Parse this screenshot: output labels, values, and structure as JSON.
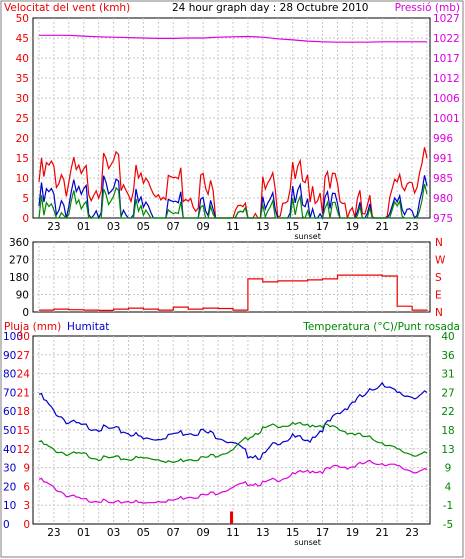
{
  "title": "24 hour graph day : 28 Octubre 2010",
  "colors": {
    "red": "#ee0000",
    "blue": "#0000cc",
    "green": "#008800",
    "magenta": "#dd00dd",
    "grid": "#c8c8c8",
    "axis": "#000000"
  },
  "chart_data": [
    {
      "type": "line",
      "panel": "wind-pressure",
      "title": "24 hour graph day : 28 Octubre 2010",
      "left_label": "Velocitat del vent (kmh)",
      "right_label": "Pressió (mb)",
      "x_ticks": [
        "23",
        "01",
        "03",
        "05",
        "07",
        "09",
        "11",
        "13",
        "15",
        "17",
        "19",
        "21",
        "23"
      ],
      "x_annotation": "sunset",
      "left_ticks": [
        "0",
        "5",
        "10",
        "15",
        "20",
        "25",
        "30",
        "35",
        "40",
        "45",
        "50"
      ],
      "right_ticks": [
        "975",
        "980",
        "985",
        "991",
        "996",
        "1001",
        "1006",
        "1012",
        "1017",
        "1022",
        "1027"
      ],
      "ylim_left": [
        0,
        50
      ],
      "ylim_right": [
        975,
        1027
      ],
      "x": [
        22,
        23,
        0,
        1,
        2,
        3,
        4,
        5,
        6,
        7,
        8,
        9,
        10,
        11,
        12,
        13,
        14,
        15,
        16,
        17,
        18,
        19,
        20,
        21,
        22,
        23,
        24
      ],
      "series": [
        {
          "axis": "left",
          "color": "red",
          "values": [
            12,
            15,
            13,
            12,
            13,
            14,
            12,
            11,
            12,
            13,
            11,
            10,
            6,
            2,
            1,
            8,
            9,
            11,
            12,
            10,
            9,
            6,
            3,
            5,
            9,
            14,
            15
          ]
        },
        {
          "axis": "left",
          "color": "blue",
          "values": [
            6,
            8,
            7,
            7,
            8,
            7,
            6,
            5,
            6,
            7,
            5,
            4,
            2,
            0,
            0,
            3,
            4,
            5,
            6,
            5,
            4,
            2,
            1,
            2,
            4,
            7,
            8
          ]
        },
        {
          "axis": "left",
          "color": "green",
          "values": [
            3,
            4,
            5,
            3,
            4,
            5,
            3,
            3,
            4,
            4,
            3,
            2,
            1,
            0,
            0,
            1,
            2,
            2,
            3,
            2,
            2,
            1,
            0,
            1,
            3,
            4,
            6
          ]
        },
        {
          "axis": "right",
          "color": "magenta",
          "values": [
            1022.5,
            1022.5,
            1022.5,
            1022.3,
            1022.1,
            1022.0,
            1021.9,
            1021.8,
            1021.7,
            1021.7,
            1021.8,
            1021.8,
            1022.0,
            1022.1,
            1022.2,
            1022.0,
            1021.6,
            1021.3,
            1021.0,
            1020.8,
            1020.7,
            1020.7,
            1020.7,
            1020.8,
            1020.8,
            1020.8,
            1020.8
          ]
        }
      ]
    },
    {
      "type": "line",
      "panel": "wind-direction",
      "left_ticks": [
        "0",
        "90",
        "180",
        "270",
        "360"
      ],
      "right_ticks": [
        "N",
        "E",
        "S",
        "W",
        "N"
      ],
      "ylim": [
        0,
        360
      ],
      "x": [
        22,
        23,
        0,
        1,
        2,
        3,
        4,
        5,
        6,
        7,
        8,
        9,
        10,
        11,
        12,
        13,
        14,
        15,
        16,
        17,
        18,
        19,
        20,
        21,
        22,
        23,
        24
      ],
      "series": [
        {
          "color": "red",
          "values": [
            10,
            15,
            12,
            10,
            8,
            15,
            20,
            15,
            10,
            25,
            15,
            20,
            18,
            10,
            170,
            155,
            160,
            160,
            165,
            170,
            190,
            190,
            190,
            185,
            30,
            10,
            5
          ]
        }
      ]
    },
    {
      "type": "line",
      "panel": "rain-humidity-temperature",
      "left_label_rain": "Pluja (mm)",
      "left_label_humidity": "Humitat",
      "right_label": "Temperatura (°C)/Punt rosada",
      "x_ticks": [
        "23",
        "01",
        "03",
        "05",
        "07",
        "09",
        "11",
        "13",
        "15",
        "17",
        "19",
        "21",
        "23"
      ],
      "x_annotation": "sunset",
      "humidity_ticks": [
        "0",
        "10",
        "20",
        "30",
        "40",
        "50",
        "60",
        "70",
        "80",
        "90",
        "100"
      ],
      "rain_ticks": [
        "0",
        "3",
        "6",
        "9",
        "12",
        "15",
        "18",
        "21",
        "24",
        "27",
        "30"
      ],
      "temperature_ticks": [
        "-5",
        "-1",
        "4",
        "9",
        "13",
        "18",
        "22",
        "27",
        "31",
        "36",
        "40"
      ],
      "ylim_left": [
        0,
        100
      ],
      "ylim_right": [
        -5,
        40
      ],
      "x": [
        22,
        23,
        0,
        1,
        2,
        3,
        4,
        5,
        6,
        7,
        8,
        9,
        10,
        11,
        12,
        13,
        14,
        15,
        16,
        17,
        18,
        19,
        20,
        21,
        22,
        23,
        24
      ],
      "series": [
        {
          "label": "Humitat",
          "axis": "left",
          "color": "blue",
          "values": [
            70,
            61,
            55,
            53,
            52,
            51,
            50,
            46,
            47,
            49,
            50,
            50,
            48,
            44,
            38,
            37,
            45,
            47,
            45,
            52,
            59,
            66,
            70,
            77,
            70,
            69,
            70
          ]
        },
        {
          "label": "Temperatura (°C)",
          "axis": "right",
          "color": "green",
          "values": [
            15,
            13,
            12,
            12,
            11,
            11,
            11,
            11,
            11,
            10,
            11,
            11,
            12,
            13,
            16,
            18,
            19,
            19,
            19,
            19,
            18,
            17,
            16,
            15,
            13,
            12,
            12
          ]
        },
        {
          "label": "Punt rosada",
          "axis": "right",
          "color": "magenta",
          "values": [
            6,
            4,
            2,
            1,
            1,
            0,
            1,
            0,
            1,
            1,
            2,
            2,
            3,
            4,
            5,
            5,
            6,
            7,
            8,
            8,
            9,
            9,
            10,
            10,
            9,
            8,
            8
          ]
        }
      ],
      "rain": {
        "x": 10.9,
        "value": 2
      }
    }
  ]
}
